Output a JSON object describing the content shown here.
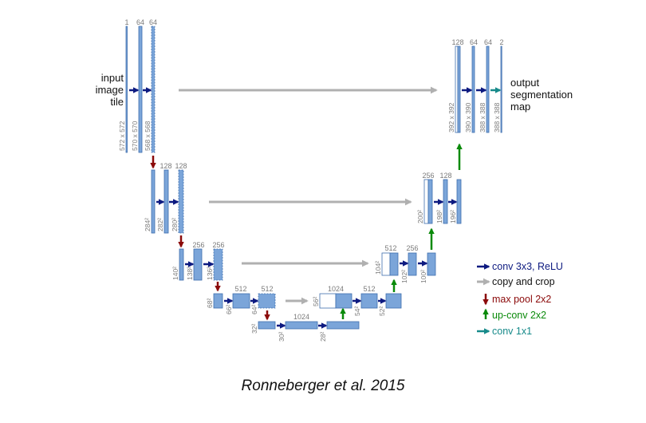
{
  "diagram": {
    "labels": {
      "input": [
        "input",
        "image",
        "tile"
      ],
      "output": [
        "output",
        "segmentation",
        "map"
      ]
    },
    "channels": {
      "l1": [
        "1",
        "64",
        "64"
      ],
      "l1_out": [
        "128",
        "64",
        "64",
        "2"
      ],
      "l2": [
        "128",
        "128"
      ],
      "l2_up": [
        "256",
        "128"
      ],
      "l3": [
        "256",
        "256"
      ],
      "l3_up": [
        "512",
        "256"
      ],
      "l4": [
        "512",
        "512"
      ],
      "l4_up": [
        "1024",
        "512"
      ],
      "l5": [
        "1024"
      ]
    },
    "dims": {
      "l1": [
        "572 x 572",
        "570 x 570",
        "568 x 568"
      ],
      "l1_out": [
        "392 x 392",
        "390 x 390",
        "388 x 388",
        "388 x 388"
      ],
      "l2": [
        "284²",
        "282²",
        "280²"
      ],
      "l2_up": [
        "200²",
        "198²",
        "196²"
      ],
      "l3": [
        "140²",
        "138²",
        "136²"
      ],
      "l3_up": [
        "104²",
        "102²",
        "100²"
      ],
      "l4": [
        "68²",
        "66²",
        "64²"
      ],
      "l4_up": [
        "56²",
        "54²",
        "52²"
      ],
      "l5": [
        "32²",
        "30²",
        "28²"
      ]
    }
  },
  "legend": [
    {
      "label": "conv 3x3, ReLU",
      "color": "#0d1a80",
      "icon": "arrow-right-icon"
    },
    {
      "label": "copy and crop",
      "color": "#b0b0b0",
      "icon": "arrow-right-icon"
    },
    {
      "label": "max pool 2x2",
      "color": "#8b0a0a",
      "icon": "arrow-down-icon"
    },
    {
      "label": "up-conv 2x2",
      "color": "#0a8a0a",
      "icon": "arrow-up-icon"
    },
    {
      "label": "conv 1x1",
      "color": "#178a8a",
      "icon": "arrow-right-icon"
    }
  ],
  "citation": "Ronneberger et al. 2015",
  "colors": {
    "block": "#7ba5d9",
    "block_edge": "#3f6fae",
    "text_dim": "#7a7a7a"
  }
}
